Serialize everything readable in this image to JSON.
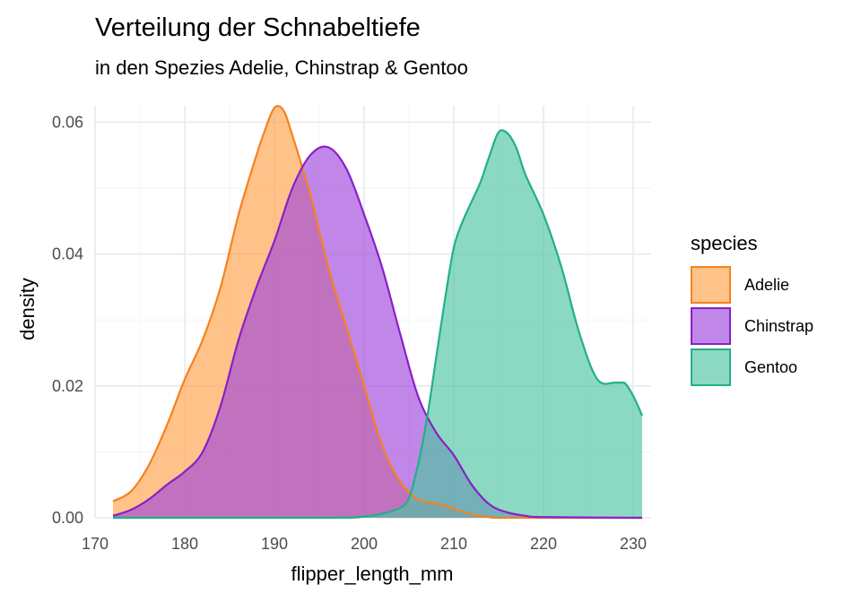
{
  "chart_data": {
    "type": "area",
    "title": "Verteilung der Schnabeltiefe",
    "subtitle": "in den Spezies Adelie, Chinstrap & Gentoo",
    "xlabel": "flipper_length_mm",
    "ylabel": "density",
    "xlim": [
      170,
      232
    ],
    "ylim": [
      0,
      0.0625
    ],
    "x_ticks": [
      170,
      180,
      190,
      200,
      210,
      220,
      230
    ],
    "y_ticks": [
      0.0,
      0.02,
      0.04,
      0.06
    ],
    "x_tick_labels": [
      "170",
      "180",
      "190",
      "200",
      "210",
      "220",
      "230"
    ],
    "y_tick_labels": [
      "0.00",
      "0.02",
      "0.04",
      "0.06"
    ],
    "grid": true,
    "legend": {
      "title": "species",
      "position": "right"
    },
    "series": [
      {
        "name": "Adelie",
        "line_color": "#F58220",
        "fill_color": "#FFA24A",
        "points": [
          [
            172,
            0.0025
          ],
          [
            174,
            0.004
          ],
          [
            176,
            0.008
          ],
          [
            178,
            0.014
          ],
          [
            180,
            0.021
          ],
          [
            182,
            0.027
          ],
          [
            184,
            0.035
          ],
          [
            186,
            0.046
          ],
          [
            188,
            0.055
          ],
          [
            189,
            0.059
          ],
          [
            190,
            0.0622
          ],
          [
            191,
            0.0618
          ],
          [
            192,
            0.058
          ],
          [
            194,
            0.049
          ],
          [
            196,
            0.038
          ],
          [
            198,
            0.029
          ],
          [
            200,
            0.02
          ],
          [
            202,
            0.011
          ],
          [
            204,
            0.0055
          ],
          [
            206,
            0.0028
          ],
          [
            208,
            0.0022
          ],
          [
            210,
            0.0014
          ],
          [
            212,
            0.0005
          ],
          [
            214,
            0.0001
          ],
          [
            216,
            0
          ],
          [
            231,
            0
          ]
        ]
      },
      {
        "name": "Chinstrap",
        "line_color": "#8A1FC8",
        "fill_color": "#A046DC",
        "points": [
          [
            172,
            0.0003
          ],
          [
            174,
            0.0012
          ],
          [
            176,
            0.0028
          ],
          [
            178,
            0.005
          ],
          [
            180,
            0.007
          ],
          [
            182,
            0.01
          ],
          [
            184,
            0.017
          ],
          [
            186,
            0.027
          ],
          [
            188,
            0.035
          ],
          [
            190,
            0.042
          ],
          [
            192,
            0.05
          ],
          [
            194,
            0.055
          ],
          [
            196,
            0.0562
          ],
          [
            198,
            0.053
          ],
          [
            200,
            0.046
          ],
          [
            202,
            0.038
          ],
          [
            204,
            0.028
          ],
          [
            206,
            0.0185
          ],
          [
            208,
            0.013
          ],
          [
            210,
            0.0095
          ],
          [
            212,
            0.005
          ],
          [
            214,
            0.002
          ],
          [
            216,
            0.0008
          ],
          [
            218,
            0.0003
          ],
          [
            220,
            0.0001
          ],
          [
            231,
            0
          ]
        ]
      },
      {
        "name": "Gentoo",
        "line_color": "#22B08A",
        "fill_color": "#4DC4A2",
        "points": [
          [
            172,
            0
          ],
          [
            196,
            0
          ],
          [
            200,
            0.0002
          ],
          [
            202,
            0.0006
          ],
          [
            204,
            0.0015
          ],
          [
            205,
            0.003
          ],
          [
            206,
            0.008
          ],
          [
            207,
            0.015
          ],
          [
            208,
            0.024
          ],
          [
            209,
            0.033
          ],
          [
            210,
            0.041
          ],
          [
            211,
            0.045
          ],
          [
            212,
            0.048
          ],
          [
            213,
            0.051
          ],
          [
            214,
            0.055
          ],
          [
            215,
            0.0585
          ],
          [
            216,
            0.0583
          ],
          [
            217,
            0.056
          ],
          [
            218,
            0.052
          ],
          [
            220,
            0.046
          ],
          [
            222,
            0.038
          ],
          [
            224,
            0.028
          ],
          [
            226,
            0.021
          ],
          [
            228,
            0.0205
          ],
          [
            229,
            0.0205
          ],
          [
            230,
            0.0185
          ],
          [
            231,
            0.0155
          ]
        ]
      }
    ]
  }
}
